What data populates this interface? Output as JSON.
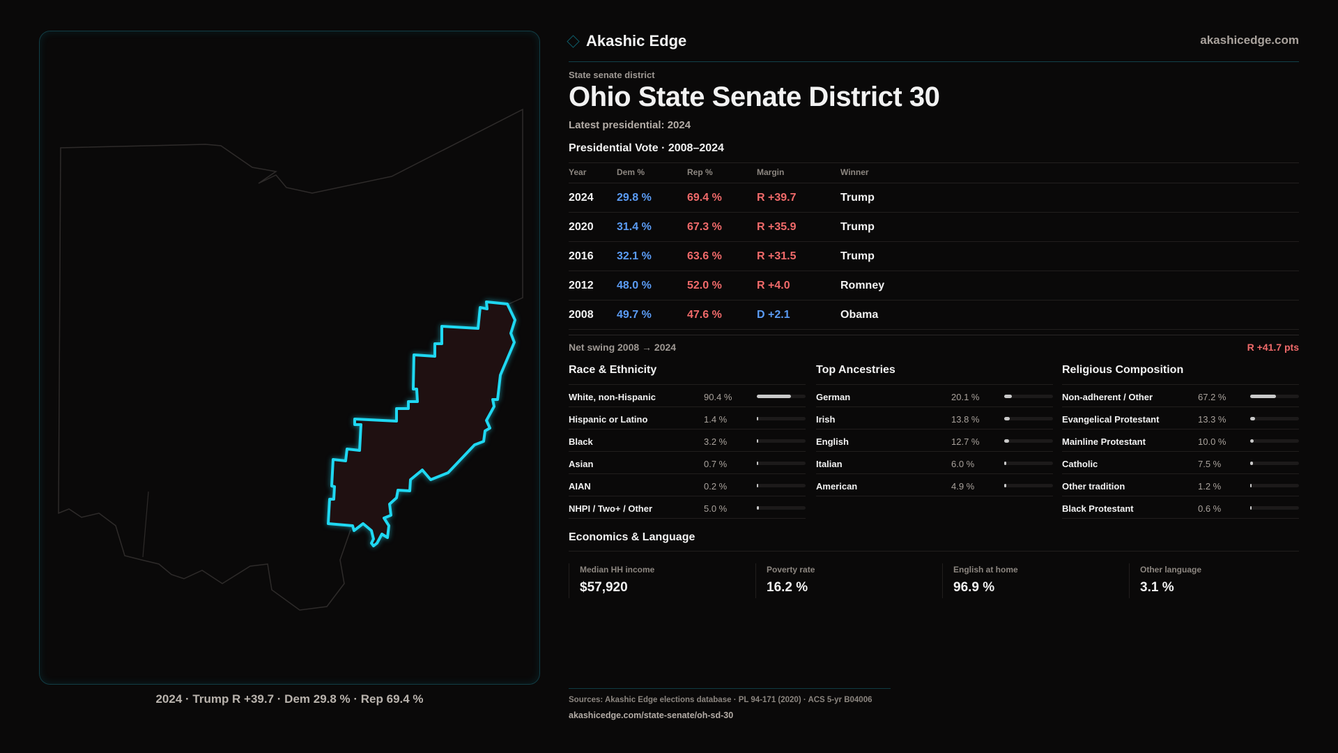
{
  "brand": {
    "name": "Akashic Edge",
    "site": "akashicedge.com",
    "accent": "#1fd8f2"
  },
  "header": {
    "kicker": "State senate district",
    "title": "Ohio State Senate District 30",
    "latest": "Latest presidential: 2024"
  },
  "map": {
    "caption": "2024 · Trump R +39.7 · Dem 29.8 % · Rep 69.4 %"
  },
  "presidential": {
    "heading": "Presidential Vote · 2008–2024",
    "columns": [
      "Year",
      "Dem %",
      "Rep %",
      "Margin",
      "Winner"
    ],
    "rows": [
      {
        "year": "2024",
        "dem": "29.8 %",
        "rep": "69.4 %",
        "margin": "R +39.7",
        "margin_party": "R",
        "winner": "Trump"
      },
      {
        "year": "2020",
        "dem": "31.4 %",
        "rep": "67.3 %",
        "margin": "R +35.9",
        "margin_party": "R",
        "winner": "Trump"
      },
      {
        "year": "2016",
        "dem": "32.1 %",
        "rep": "63.6 %",
        "margin": "R +31.5",
        "margin_party": "R",
        "winner": "Trump"
      },
      {
        "year": "2012",
        "dem": "48.0 %",
        "rep": "52.0 %",
        "margin": "R +4.0",
        "margin_party": "R",
        "winner": "Romney"
      },
      {
        "year": "2008",
        "dem": "49.7 %",
        "rep": "47.6 %",
        "margin": "D +2.1",
        "margin_party": "D",
        "winner": "Obama"
      }
    ],
    "swing_label": "Net swing 2008 → 2024",
    "swing_value": "R +41.7 pts"
  },
  "demographics": [
    {
      "heading": "Race & Ethnicity",
      "items": [
        {
          "label": "White, non-Hispanic",
          "value": "90.4 %",
          "pct": 90.4
        },
        {
          "label": "Hispanic or Latino",
          "value": "1.4 %",
          "pct": 1.4
        },
        {
          "label": "Black",
          "value": "3.2 %",
          "pct": 3.2
        },
        {
          "label": "Asian",
          "value": "0.7 %",
          "pct": 0.7
        },
        {
          "label": "AIAN",
          "value": "0.2 %",
          "pct": 0.2
        },
        {
          "label": "NHPI / Two+ / Other",
          "value": "5.0 %",
          "pct": 5.0
        }
      ]
    },
    {
      "heading": "Top Ancestries",
      "items": [
        {
          "label": "German",
          "value": "20.1 %",
          "pct": 20.1
        },
        {
          "label": "Irish",
          "value": "13.8 %",
          "pct": 13.8
        },
        {
          "label": "English",
          "value": "12.7 %",
          "pct": 12.7
        },
        {
          "label": "Italian",
          "value": "6.0 %",
          "pct": 6.0
        },
        {
          "label": "American",
          "value": "4.9 %",
          "pct": 4.9
        }
      ]
    },
    {
      "heading": "Religious Composition",
      "items": [
        {
          "label": "Non-adherent / Other",
          "value": "67.2 %",
          "pct": 67.2
        },
        {
          "label": "Evangelical Protestant",
          "value": "13.3 %",
          "pct": 13.3
        },
        {
          "label": "Mainline Protestant",
          "value": "10.0 %",
          "pct": 10.0
        },
        {
          "label": "Catholic",
          "value": "7.5 %",
          "pct": 7.5
        },
        {
          "label": "Other tradition",
          "value": "1.2 %",
          "pct": 1.2
        },
        {
          "label": "Black Protestant",
          "value": "0.6 %",
          "pct": 0.6
        }
      ]
    }
  ],
  "economics": {
    "heading": "Economics & Language",
    "cards": [
      {
        "label": "Median HH income",
        "value": "$57,920"
      },
      {
        "label": "Poverty rate",
        "value": "16.2 %"
      },
      {
        "label": "English at home",
        "value": "96.9 %"
      },
      {
        "label": "Other language",
        "value": "3.1 %"
      }
    ]
  },
  "footer": {
    "sources": "Sources: Akashic Edge elections database · PL 94-171 (2020) · ACS 5-yr B04006",
    "url": "akashicedge.com/state-senate/oh-sd-30"
  }
}
